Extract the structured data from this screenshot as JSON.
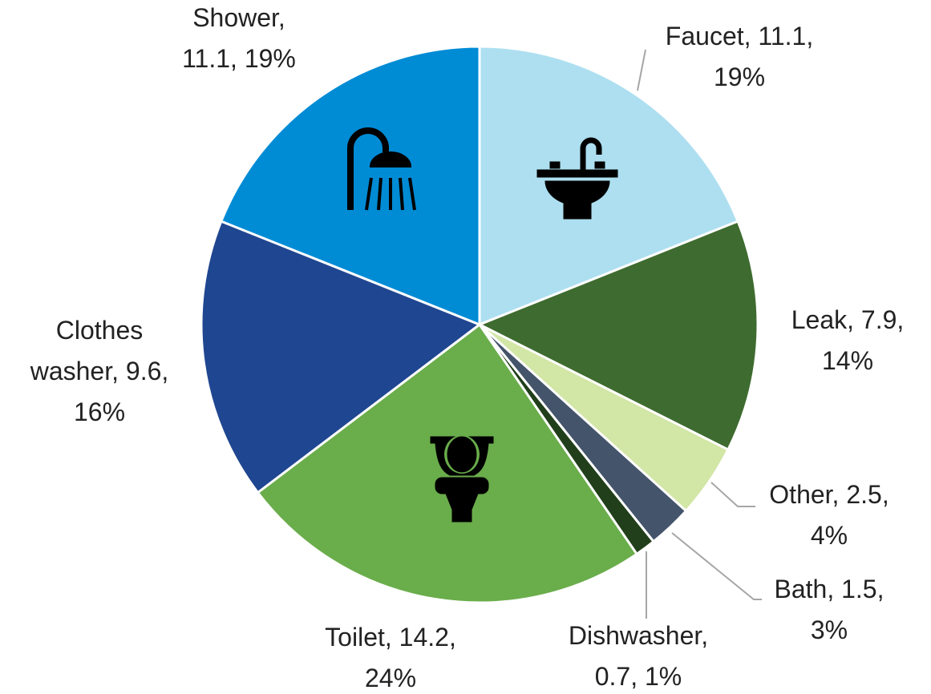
{
  "chart_data": {
    "type": "pie",
    "categories": [
      "Faucet",
      "Leak",
      "Other",
      "Bath",
      "Dishwasher",
      "Toilet",
      "Clothes washer",
      "Shower"
    ],
    "values": [
      11.1,
      7.9,
      2.5,
      1.5,
      0.7,
      14.2,
      9.6,
      11.1
    ],
    "labels": [
      [
        "Faucet, 11.1,",
        "19%"
      ],
      [
        "Leak, 7.9,",
        "14%"
      ],
      [
        "Other, 2.5,",
        "4%"
      ],
      [
        "Bath, 1.5,",
        "3%"
      ],
      [
        "Dishwasher,",
        "0.7, 1%"
      ],
      [
        "Toilet, 14.2,",
        "24%"
      ],
      [
        "Clothes",
        "washer, 9.6,",
        "16%"
      ],
      [
        "Shower,",
        "11.1, 19%"
      ]
    ],
    "colors": [
      "#addff0",
      "#3e6b2f",
      "#d2e6a6",
      "#44546a",
      "#203f1a",
      "#6aad4b",
      "#1f4690",
      "#008bd5"
    ]
  }
}
